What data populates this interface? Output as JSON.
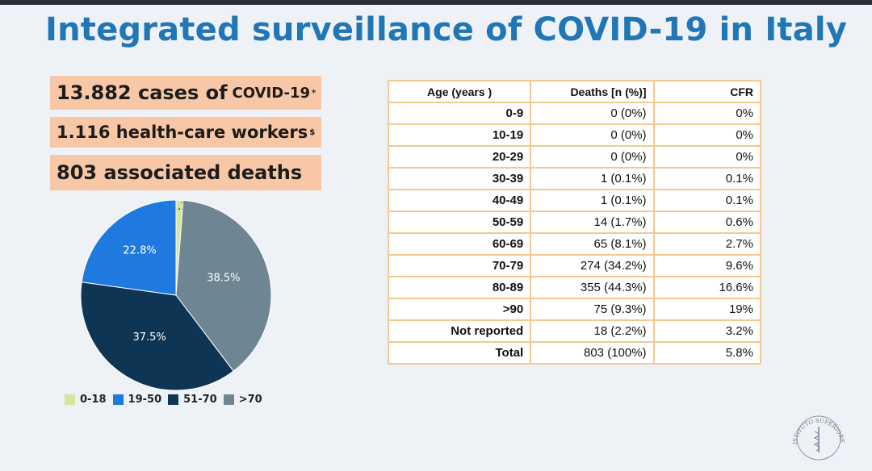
{
  "title": "Integrated surveillance of COVID-19 in Italy",
  "stats": {
    "cases_number": "13.882",
    "cases_label": "cases of",
    "cases_suffix": "COVID-19",
    "cases_mark": "*",
    "hcw_number": "1.116",
    "hcw_label": "health-care workers",
    "hcw_mark": "$",
    "deaths_text": "803 associated deaths"
  },
  "chart_data": {
    "type": "pie",
    "slices": [
      {
        "label": "0-18",
        "value": 1.2,
        "value_label": "1.2%",
        "color": "#d6e59c"
      },
      {
        "label": ">70",
        "value": 38.5,
        "value_label": "38.5%",
        "color": "#6e8593"
      },
      {
        "label": "51-70",
        "value": 37.5,
        "value_label": "37.5%",
        "color": "#0f3554"
      },
      {
        "label": "19-50",
        "value": 22.8,
        "value_label": "22.8%",
        "color": "#1f7ae0"
      }
    ],
    "legend": [
      "0-18",
      "19-50",
      "51-70",
      ">70"
    ],
    "legend_placement": "bottom"
  },
  "table": {
    "headers": [
      "Age (years )",
      "Deaths [n (%)]",
      "CFR"
    ],
    "rows": [
      {
        "age": "0-9",
        "deaths": "0 (0%)",
        "cfr": "0%"
      },
      {
        "age": "10-19",
        "deaths": "0 (0%)",
        "cfr": "0%"
      },
      {
        "age": "20-29",
        "deaths": "0 (0%)",
        "cfr": "0%"
      },
      {
        "age": "30-39",
        "deaths": "1 (0.1%)",
        "cfr": "0.1%"
      },
      {
        "age": "40-49",
        "deaths": "1 (0.1%)",
        "cfr": "0.1%"
      },
      {
        "age": "50-59",
        "deaths": "14 (1.7%)",
        "cfr": "0.6%"
      },
      {
        "age": "60-69",
        "deaths": "65 (8.1%)",
        "cfr": "2.7%"
      },
      {
        "age": "70-79",
        "deaths": "274 (34.2%)",
        "cfr": "9.6%"
      },
      {
        "age": "80-89",
        "deaths": "355 (44.3%)",
        "cfr": "16.6%"
      },
      {
        "age": ">90",
        "deaths": "75 (9.3%)",
        "cfr": "19%"
      },
      {
        "age": "Not reported",
        "deaths": "18 (2.2%)",
        "cfr": "3.2%"
      },
      {
        "age": "Total",
        "deaths": "803 (100%)",
        "cfr": "5.8%"
      }
    ]
  },
  "seal": {
    "text": "ISTITUTO SUPERIORE DI SANITÀ"
  }
}
